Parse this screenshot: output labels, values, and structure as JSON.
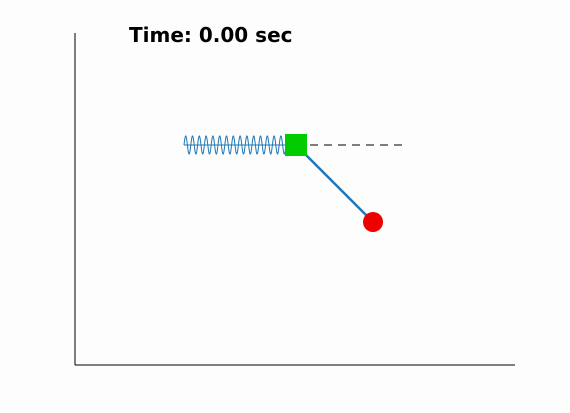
{
  "animation": {
    "time_label": "Time: 0.00 sec",
    "time_value": 0.0,
    "time_unit": "sec"
  },
  "colors": {
    "background": "#fdfdfd",
    "axes": "#000000",
    "spring": "#1f77b4",
    "rod": "#1f77b4",
    "cart": "#00cc00",
    "bob": "#ee0000",
    "reference_line": "#000000"
  },
  "scene": {
    "axes_visible": [
      "left",
      "bottom"
    ],
    "spring_coils": 15,
    "reference_line_style": "dashed",
    "cart_shape": "square",
    "bob_shape": "circle"
  }
}
